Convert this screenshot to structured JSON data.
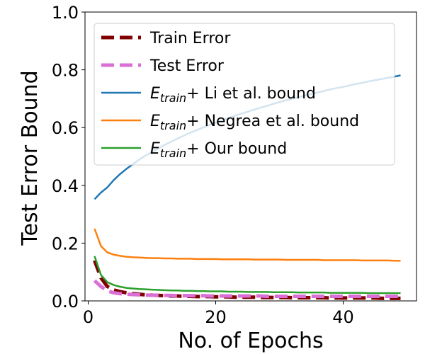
{
  "chart_data": {
    "type": "line",
    "title": "",
    "xlabel": "No. of Epochs",
    "ylabel": "Test Error Bound",
    "xlim": [
      -0.5,
      51.5
    ],
    "ylim": [
      0.0,
      1.0
    ],
    "xticks": [
      0,
      20,
      40
    ],
    "xtick_labels": [
      "0",
      "20",
      "40"
    ],
    "yticks": [
      0.0,
      0.2,
      0.4,
      0.6,
      0.8,
      1.0
    ],
    "ytick_labels": [
      "0.0",
      "0.2",
      "0.4",
      "0.6",
      "0.8",
      "1.0"
    ],
    "grid": false,
    "legend_position": "upper-left",
    "x": [
      1,
      2,
      3,
      4,
      5,
      6,
      7,
      8,
      9,
      10,
      11,
      12,
      13,
      14,
      15,
      16,
      17,
      18,
      19,
      20,
      21,
      22,
      23,
      24,
      25,
      26,
      27,
      28,
      29,
      30,
      31,
      32,
      33,
      34,
      35,
      36,
      37,
      38,
      39,
      40,
      41,
      42,
      43,
      44,
      45,
      46,
      47,
      48,
      49
    ],
    "series": [
      {
        "name": "Train Error",
        "name_parts": [
          {
            "text": "Train Error",
            "italic": false
          }
        ],
        "color": "#800000",
        "style": "dashed",
        "width": 5,
        "values": [
          0.14,
          0.08,
          0.05,
          0.038,
          0.032,
          0.028,
          0.025,
          0.023,
          0.021,
          0.02,
          0.019,
          0.018,
          0.017,
          0.017,
          0.016,
          0.016,
          0.015,
          0.015,
          0.015,
          0.014,
          0.014,
          0.014,
          0.013,
          0.013,
          0.013,
          0.013,
          0.012,
          0.012,
          0.012,
          0.012,
          0.012,
          0.011,
          0.011,
          0.011,
          0.011,
          0.011,
          0.011,
          0.01,
          0.01,
          0.01,
          0.01,
          0.01,
          0.01,
          0.01,
          0.01,
          0.009,
          0.009,
          0.009,
          0.009
        ]
      },
      {
        "name": "Test Error",
        "name_parts": [
          {
            "text": "Test Error",
            "italic": false
          }
        ],
        "color": "#da70d6",
        "style": "dashed",
        "width": 5,
        "values": [
          0.07,
          0.05,
          0.035,
          0.028,
          0.025,
          0.023,
          0.022,
          0.021,
          0.02,
          0.02,
          0.019,
          0.019,
          0.019,
          0.018,
          0.018,
          0.018,
          0.018,
          0.018,
          0.017,
          0.017,
          0.017,
          0.017,
          0.017,
          0.017,
          0.017,
          0.017,
          0.017,
          0.016,
          0.016,
          0.016,
          0.016,
          0.016,
          0.016,
          0.016,
          0.016,
          0.016,
          0.016,
          0.016,
          0.016,
          0.016,
          0.016,
          0.016,
          0.016,
          0.016,
          0.016,
          0.016,
          0.016,
          0.016,
          0.016
        ]
      },
      {
        "name": "Etrain+ Li et al. bound",
        "name_parts": [
          {
            "text": "E",
            "italic": true
          },
          {
            "text": "train",
            "italic": true,
            "sub": true
          },
          {
            "text": "+ Li et al. bound",
            "italic": false
          }
        ],
        "color": "#1f77b4",
        "style": "solid",
        "width": 2.5,
        "values": [
          0.352,
          0.375,
          0.393,
          0.418,
          0.439,
          0.457,
          0.473,
          0.489,
          0.503,
          0.516,
          0.528,
          0.54,
          0.551,
          0.562,
          0.572,
          0.582,
          0.591,
          0.6,
          0.609,
          0.617,
          0.625,
          0.633,
          0.641,
          0.648,
          0.655,
          0.662,
          0.669,
          0.675,
          0.682,
          0.688,
          0.694,
          0.7,
          0.705,
          0.711,
          0.716,
          0.721,
          0.727,
          0.732,
          0.737,
          0.741,
          0.746,
          0.751,
          0.755,
          0.76,
          0.764,
          0.768,
          0.772,
          0.776,
          0.781
        ]
      },
      {
        "name": "Etrain+ Negrea et al. bound",
        "name_parts": [
          {
            "text": "E",
            "italic": true
          },
          {
            "text": "train",
            "italic": true,
            "sub": true
          },
          {
            "text": "+ Negrea et al. bound",
            "italic": false
          }
        ],
        "color": "#ff7f0e",
        "style": "solid",
        "width": 2.5,
        "values": [
          0.25,
          0.19,
          0.168,
          0.16,
          0.156,
          0.153,
          0.151,
          0.15,
          0.149,
          0.148,
          0.148,
          0.147,
          0.147,
          0.146,
          0.146,
          0.146,
          0.145,
          0.145,
          0.145,
          0.145,
          0.144,
          0.144,
          0.144,
          0.144,
          0.144,
          0.143,
          0.143,
          0.143,
          0.143,
          0.143,
          0.142,
          0.142,
          0.142,
          0.142,
          0.142,
          0.142,
          0.141,
          0.141,
          0.141,
          0.141,
          0.141,
          0.141,
          0.14,
          0.14,
          0.14,
          0.14,
          0.14,
          0.139,
          0.139
        ]
      },
      {
        "name": "Etrain+ Our bound",
        "name_parts": [
          {
            "text": "E",
            "italic": true
          },
          {
            "text": "train",
            "italic": true,
            "sub": true
          },
          {
            "text": "+ Our bound",
            "italic": false
          }
        ],
        "color": "#2ca02c",
        "style": "solid",
        "width": 2.5,
        "values": [
          0.155,
          0.09,
          0.065,
          0.055,
          0.049,
          0.045,
          0.043,
          0.041,
          0.04,
          0.039,
          0.038,
          0.037,
          0.036,
          0.036,
          0.035,
          0.035,
          0.034,
          0.034,
          0.033,
          0.033,
          0.033,
          0.032,
          0.032,
          0.032,
          0.031,
          0.031,
          0.031,
          0.031,
          0.03,
          0.03,
          0.03,
          0.03,
          0.029,
          0.029,
          0.029,
          0.029,
          0.029,
          0.028,
          0.028,
          0.028,
          0.028,
          0.028,
          0.028,
          0.027,
          0.027,
          0.027,
          0.027,
          0.027,
          0.027
        ]
      }
    ]
  }
}
